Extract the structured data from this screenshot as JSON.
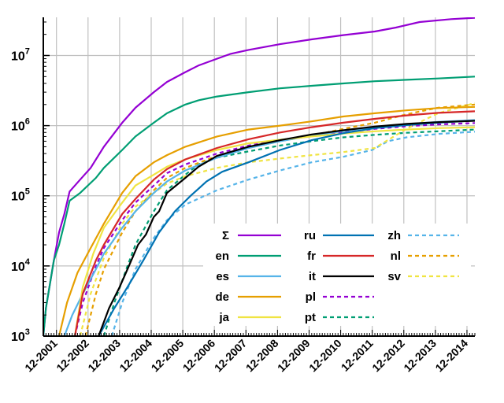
{
  "chart_data": {
    "type": "line",
    "title": "",
    "xlabel": "",
    "ylabel": "",
    "y_scale": "log",
    "ylim": [
      1000,
      35000000
    ],
    "xlim": [
      "2001-07",
      "2015-03"
    ],
    "grid": true,
    "legend_position": "bottom-right",
    "x_tick_labels": [
      "12-2001",
      "12-2002",
      "12-2003",
      "12-2004",
      "12-2005",
      "12-2006",
      "12-2007",
      "12-2008",
      "12-2009",
      "12-2010",
      "12-2011",
      "12-2012",
      "12-2013",
      "12-2014"
    ],
    "y_ticks": [
      {
        "value": 1000,
        "base": "10",
        "exp": "3"
      },
      {
        "value": 10000,
        "base": "10",
        "exp": "4"
      },
      {
        "value": 100000,
        "base": "10",
        "exp": "5"
      },
      {
        "value": 1000000,
        "base": "10",
        "exp": "6"
      },
      {
        "value": 10000000,
        "base": "10",
        "exp": "7"
      }
    ],
    "series": [
      {
        "name": "Σ",
        "color": "#9400d3",
        "dash": false,
        "points": [
          [
            "2001-07",
            1000
          ],
          [
            "2001-08",
            2500
          ],
          [
            "2001-11",
            12000
          ],
          [
            "2002-01",
            30000
          ],
          [
            "2002-03",
            55000
          ],
          [
            "2002-05",
            115000
          ],
          [
            "2002-09",
            170000
          ],
          [
            "2003-01",
            250000
          ],
          [
            "2003-06",
            500000
          ],
          [
            "2004-01",
            1100000
          ],
          [
            "2004-06",
            1800000
          ],
          [
            "2005-01",
            3000000
          ],
          [
            "2005-06",
            4200000
          ],
          [
            "2006-01",
            5800000
          ],
          [
            "2006-06",
            7200000
          ],
          [
            "2007-01",
            9000000
          ],
          [
            "2007-06",
            10500000
          ],
          [
            "2008-01",
            12000000
          ],
          [
            "2009-01",
            14500000
          ],
          [
            "2010-01",
            17000000
          ],
          [
            "2011-01",
            19500000
          ],
          [
            "2012-01",
            22000000
          ],
          [
            "2012-09",
            25000000
          ],
          [
            "2013-06",
            30000000
          ],
          [
            "2014-06",
            33000000
          ],
          [
            "2015-03",
            34500000
          ]
        ]
      },
      {
        "name": "en",
        "color": "#009e73",
        "dash": false,
        "points": [
          [
            "2001-07",
            1000
          ],
          [
            "2001-08",
            2500
          ],
          [
            "2001-11",
            12000
          ],
          [
            "2002-01",
            20000
          ],
          [
            "2002-03",
            40000
          ],
          [
            "2002-05",
            85000
          ],
          [
            "2002-09",
            110000
          ],
          [
            "2003-03",
            180000
          ],
          [
            "2003-06",
            250000
          ],
          [
            "2004-01",
            450000
          ],
          [
            "2004-06",
            700000
          ],
          [
            "2005-01",
            1100000
          ],
          [
            "2005-06",
            1500000
          ],
          [
            "2006-01",
            2000000
          ],
          [
            "2006-06",
            2300000
          ],
          [
            "2007-01",
            2600000
          ],
          [
            "2008-01",
            3000000
          ],
          [
            "2009-01",
            3400000
          ],
          [
            "2010-01",
            3700000
          ],
          [
            "2011-01",
            4000000
          ],
          [
            "2012-01",
            4300000
          ],
          [
            "2013-01",
            4500000
          ],
          [
            "2014-01",
            4700000
          ],
          [
            "2015-03",
            5000000
          ]
        ]
      },
      {
        "name": "es",
        "color": "#56b4e9",
        "dash": false,
        "points": [
          [
            "2002-03",
            1000
          ],
          [
            "2002-06",
            2000
          ],
          [
            "2002-10",
            4000
          ],
          [
            "2003-03",
            9000
          ],
          [
            "2003-06",
            15000
          ],
          [
            "2004-01",
            35000
          ],
          [
            "2004-06",
            60000
          ],
          [
            "2005-01",
            110000
          ],
          [
            "2005-06",
            160000
          ],
          [
            "2006-01",
            230000
          ],
          [
            "2007-01",
            350000
          ],
          [
            "2008-01",
            480000
          ],
          [
            "2009-01",
            600000
          ],
          [
            "2010-01",
            720000
          ],
          [
            "2011-01",
            840000
          ],
          [
            "2012-01",
            960000
          ],
          [
            "2013-01",
            1050000
          ],
          [
            "2014-01",
            1130000
          ],
          [
            "2015-03",
            1200000
          ]
        ]
      },
      {
        "name": "de",
        "color": "#e69f00",
        "dash": false,
        "points": [
          [
            "2002-01",
            1000
          ],
          [
            "2002-04",
            3000
          ],
          [
            "2002-08",
            8000
          ],
          [
            "2003-01",
            18000
          ],
          [
            "2003-06",
            40000
          ],
          [
            "2004-01",
            110000
          ],
          [
            "2004-06",
            190000
          ],
          [
            "2005-01",
            300000
          ],
          [
            "2005-06",
            380000
          ],
          [
            "2006-01",
            500000
          ],
          [
            "2007-01",
            700000
          ],
          [
            "2008-01",
            880000
          ],
          [
            "2009-01",
            1000000
          ],
          [
            "2010-01",
            1150000
          ],
          [
            "2011-01",
            1350000
          ],
          [
            "2012-01",
            1500000
          ],
          [
            "2013-01",
            1650000
          ],
          [
            "2014-01",
            1780000
          ],
          [
            "2015-03",
            1850000
          ]
        ]
      },
      {
        "name": "ja",
        "color": "#f0e442",
        "dash": false,
        "points": [
          [
            "2002-07",
            1000
          ],
          [
            "2002-10",
            5000
          ],
          [
            "2003-02",
            15000
          ],
          [
            "2003-06",
            35000
          ],
          [
            "2004-01",
            80000
          ],
          [
            "2004-06",
            140000
          ],
          [
            "2005-01",
            200000
          ],
          [
            "2005-06",
            260000
          ],
          [
            "2006-01",
            330000
          ],
          [
            "2007-01",
            450000
          ],
          [
            "2008-01",
            560000
          ],
          [
            "2009-01",
            630000
          ],
          [
            "2010-01",
            700000
          ],
          [
            "2011-01",
            770000
          ],
          [
            "2012-01",
            830000
          ],
          [
            "2013-01",
            880000
          ],
          [
            "2014-01",
            920000
          ],
          [
            "2015-03",
            950000
          ]
        ]
      },
      {
        "name": "ru",
        "color": "#0072b2",
        "dash": false,
        "points": [
          [
            "2003-04",
            1000
          ],
          [
            "2003-10",
            2500
          ],
          [
            "2004-03",
            5000
          ],
          [
            "2004-09",
            12000
          ],
          [
            "2005-03",
            30000
          ],
          [
            "2005-09",
            60000
          ],
          [
            "2006-03",
            100000
          ],
          [
            "2006-09",
            160000
          ],
          [
            "2007-03",
            220000
          ],
          [
            "2008-01",
            300000
          ],
          [
            "2009-01",
            450000
          ],
          [
            "2010-01",
            620000
          ],
          [
            "2011-01",
            780000
          ],
          [
            "2012-01",
            920000
          ],
          [
            "2013-01",
            1020000
          ],
          [
            "2014-01",
            1100000
          ],
          [
            "2015-03",
            1180000
          ]
        ]
      },
      {
        "name": "fr",
        "color": "#d62728",
        "dash": false,
        "points": [
          [
            "2002-07",
            1000
          ],
          [
            "2002-10",
            4000
          ],
          [
            "2003-03",
            12000
          ],
          [
            "2003-06",
            20000
          ],
          [
            "2004-01",
            55000
          ],
          [
            "2004-06",
            90000
          ],
          [
            "2005-01",
            170000
          ],
          [
            "2005-06",
            240000
          ],
          [
            "2006-01",
            330000
          ],
          [
            "2007-01",
            480000
          ],
          [
            "2008-01",
            640000
          ],
          [
            "2009-01",
            800000
          ],
          [
            "2010-01",
            950000
          ],
          [
            "2011-01",
            1100000
          ],
          [
            "2012-01",
            1250000
          ],
          [
            "2013-01",
            1400000
          ],
          [
            "2014-01",
            1520000
          ],
          [
            "2015-03",
            1600000
          ]
        ]
      },
      {
        "name": "it",
        "color": "#000000",
        "dash": false,
        "points": [
          [
            "2003-04",
            1000
          ],
          [
            "2003-08",
            2500
          ],
          [
            "2003-12",
            5000
          ],
          [
            "2004-03",
            9000
          ],
          [
            "2004-07",
            20000
          ],
          [
            "2004-10",
            28000
          ],
          [
            "2005-01",
            50000
          ],
          [
            "2005-03",
            60000
          ],
          [
            "2005-06",
            110000
          ],
          [
            "2006-01",
            180000
          ],
          [
            "2006-06",
            260000
          ],
          [
            "2007-01",
            370000
          ],
          [
            "2008-01",
            500000
          ],
          [
            "2009-01",
            620000
          ],
          [
            "2010-01",
            750000
          ],
          [
            "2011-01",
            860000
          ],
          [
            "2012-01",
            970000
          ],
          [
            "2013-01",
            1060000
          ],
          [
            "2014-01",
            1120000
          ],
          [
            "2015-03",
            1170000
          ]
        ]
      },
      {
        "name": "pl",
        "color": "#9400d3",
        "dash": true,
        "points": [
          [
            "2002-07",
            1000
          ],
          [
            "2002-10",
            3000
          ],
          [
            "2003-03",
            10000
          ],
          [
            "2003-06",
            18000
          ],
          [
            "2004-01",
            45000
          ],
          [
            "2004-06",
            80000
          ],
          [
            "2005-01",
            140000
          ],
          [
            "2005-06",
            210000
          ],
          [
            "2006-01",
            280000
          ],
          [
            "2007-01",
            400000
          ],
          [
            "2008-01",
            520000
          ],
          [
            "2009-01",
            620000
          ],
          [
            "2010-01",
            710000
          ],
          [
            "2011-01",
            800000
          ],
          [
            "2012-01",
            900000
          ],
          [
            "2013-01",
            980000
          ],
          [
            "2014-01",
            1040000
          ],
          [
            "2015-03",
            1090000
          ]
        ]
      },
      {
        "name": "pt",
        "color": "#009e73",
        "dash": true,
        "points": [
          [
            "2003-06",
            1000
          ],
          [
            "2003-10",
            3000
          ],
          [
            "2004-03",
            10000
          ],
          [
            "2004-06",
            20000
          ],
          [
            "2005-01",
            60000
          ],
          [
            "2005-06",
            120000
          ],
          [
            "2006-01",
            200000
          ],
          [
            "2006-06",
            280000
          ],
          [
            "2007-01",
            350000
          ],
          [
            "2008-01",
            430000
          ],
          [
            "2009-01",
            520000
          ],
          [
            "2010-01",
            600000
          ],
          [
            "2011-01",
            680000
          ],
          [
            "2012-01",
            740000
          ],
          [
            "2013-01",
            790000
          ],
          [
            "2014-01",
            830000
          ],
          [
            "2015-03",
            880000
          ]
        ]
      },
      {
        "name": "zh",
        "color": "#56b4e9",
        "dash": true,
        "points": [
          [
            "2003-09",
            1000
          ],
          [
            "2004-01",
            3000
          ],
          [
            "2004-06",
            9000
          ],
          [
            "2005-01",
            25000
          ],
          [
            "2005-06",
            45000
          ],
          [
            "2006-01",
            75000
          ],
          [
            "2007-01",
            120000
          ],
          [
            "2008-01",
            170000
          ],
          [
            "2009-01",
            230000
          ],
          [
            "2010-01",
            300000
          ],
          [
            "2011-01",
            360000
          ],
          [
            "2011-12",
            450000
          ],
          [
            "2012-06",
            600000
          ],
          [
            "2013-01",
            680000
          ],
          [
            "2014-01",
            760000
          ],
          [
            "2015-03",
            820000
          ]
        ]
      },
      {
        "name": "nl",
        "color": "#e69f00",
        "dash": true,
        "points": [
          [
            "2002-11",
            1000
          ],
          [
            "2003-03",
            4000
          ],
          [
            "2003-06",
            9000
          ],
          [
            "2004-01",
            30000
          ],
          [
            "2004-06",
            60000
          ],
          [
            "2005-01",
            120000
          ],
          [
            "2005-06",
            180000
          ],
          [
            "2006-01",
            250000
          ],
          [
            "2007-01",
            370000
          ],
          [
            "2008-01",
            480000
          ],
          [
            "2009-01",
            600000
          ],
          [
            "2010-01",
            720000
          ],
          [
            "2011-01",
            900000
          ],
          [
            "2012-01",
            1100000
          ],
          [
            "2013-01",
            1450000
          ],
          [
            "2014-01",
            1800000
          ],
          [
            "2015-03",
            2000000
          ]
        ]
      },
      {
        "name": "sv",
        "color": "#f0e442",
        "dash": true,
        "points": [
          [
            "2002-09",
            1000
          ],
          [
            "2003-01",
            4000
          ],
          [
            "2003-06",
            13000
          ],
          [
            "2004-01",
            40000
          ],
          [
            "2004-06",
            70000
          ],
          [
            "2005-01",
            110000
          ],
          [
            "2005-06",
            150000
          ],
          [
            "2006-01",
            190000
          ],
          [
            "2007-01",
            250000
          ],
          [
            "2008-01",
            300000
          ],
          [
            "2009-01",
            340000
          ],
          [
            "2010-01",
            380000
          ],
          [
            "2011-01",
            420000
          ],
          [
            "2012-01",
            480000
          ],
          [
            "2013-01",
            900000
          ],
          [
            "2014-01",
            1500000
          ],
          [
            "2015-03",
            2100000
          ]
        ]
      }
    ]
  }
}
